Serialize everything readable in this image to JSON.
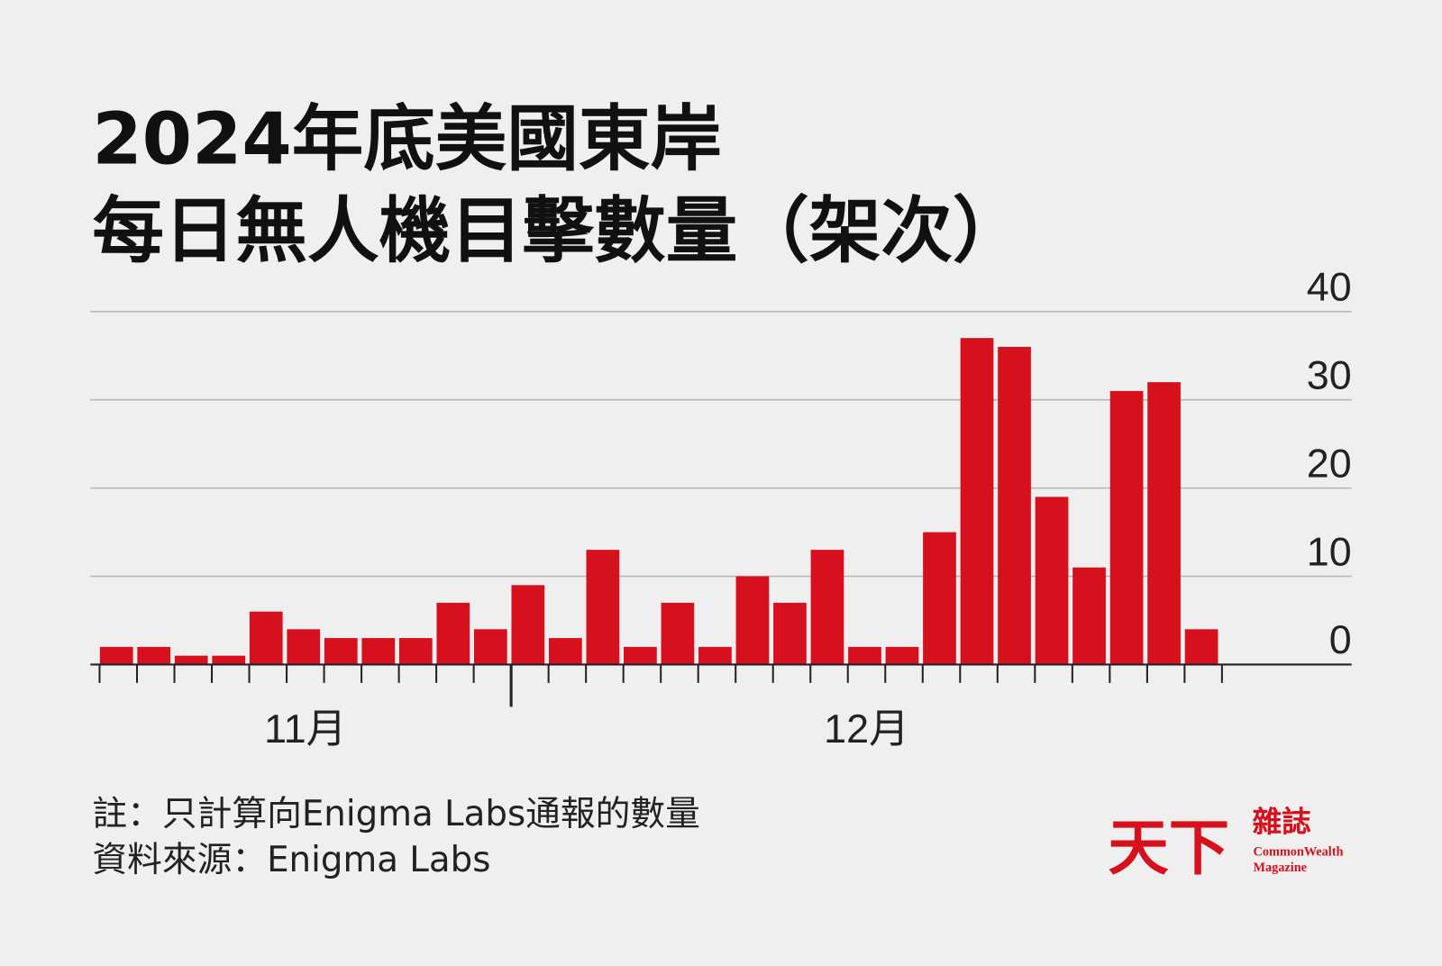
{
  "chart_data": {
    "type": "bar",
    "title": [
      "2024年底美國東岸",
      "每日無人機目擊數量（架次）"
    ],
    "categories": [
      null,
      null,
      null,
      null,
      null,
      "11月",
      null,
      null,
      null,
      null,
      null,
      null,
      null,
      null,
      null,
      null,
      null,
      null,
      null,
      null,
      "12月",
      null,
      null,
      null,
      null,
      null,
      null,
      null,
      null,
      null
    ],
    "values": [
      2,
      2,
      1,
      1,
      6,
      4,
      3,
      3,
      3,
      7,
      4,
      9,
      3,
      13,
      2,
      7,
      2,
      10,
      7,
      13,
      2,
      2,
      15,
      37,
      36,
      19,
      11,
      31,
      32,
      4
    ],
    "color": "#d7101e",
    "ylim": [
      0,
      40
    ],
    "yticks": [
      0,
      10,
      20,
      30,
      40
    ],
    "grid": true,
    "notes": [
      "註：只計算向Enigma Labs通報的數量",
      "資料來源：Enigma Labs"
    ]
  },
  "logo": {
    "main": "天下",
    "side": "雜誌",
    "en1": "CommonWealth",
    "en2": "Magazine"
  }
}
